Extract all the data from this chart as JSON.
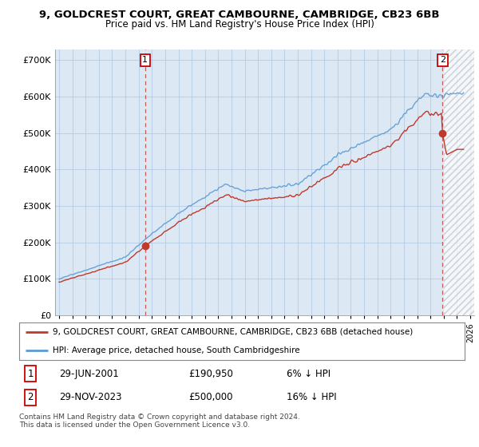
{
  "title": "9, GOLDCREST COURT, GREAT CAMBOURNE, CAMBRIDGE, CB23 6BB",
  "subtitle": "Price paid vs. HM Land Registry's House Price Index (HPI)",
  "ylabel_ticks": [
    "£0",
    "£100K",
    "£200K",
    "£300K",
    "£400K",
    "£500K",
    "£600K",
    "£700K"
  ],
  "ytick_values": [
    0,
    100000,
    200000,
    300000,
    400000,
    500000,
    600000,
    700000
  ],
  "ylim": [
    0,
    730000
  ],
  "xlim_start": 1994.7,
  "xlim_end": 2026.3,
  "transaction1": {
    "date_x": 2001.49,
    "price": 190950,
    "label": "1"
  },
  "transaction2": {
    "date_x": 2023.91,
    "price": 500000,
    "label": "2"
  },
  "legend_line1": "9, GOLDCREST COURT, GREAT CAMBOURNE, CAMBRIDGE, CB23 6BB (detached house)",
  "legend_line2": "HPI: Average price, detached house, South Cambridgeshire",
  "table_row1": [
    "1",
    "29-JUN-2001",
    "£190,950",
    "6% ↓ HPI"
  ],
  "table_row2": [
    "2",
    "29-NOV-2023",
    "£500,000",
    "16% ↓ HPI"
  ],
  "footer": "Contains HM Land Registry data © Crown copyright and database right 2024.\nThis data is licensed under the Open Government Licence v3.0.",
  "hpi_color": "#5b9bd5",
  "price_color": "#c0392b",
  "chart_bg": "#dce9f5",
  "background_color": "#ffffff",
  "grid_color": "#aec6e0"
}
